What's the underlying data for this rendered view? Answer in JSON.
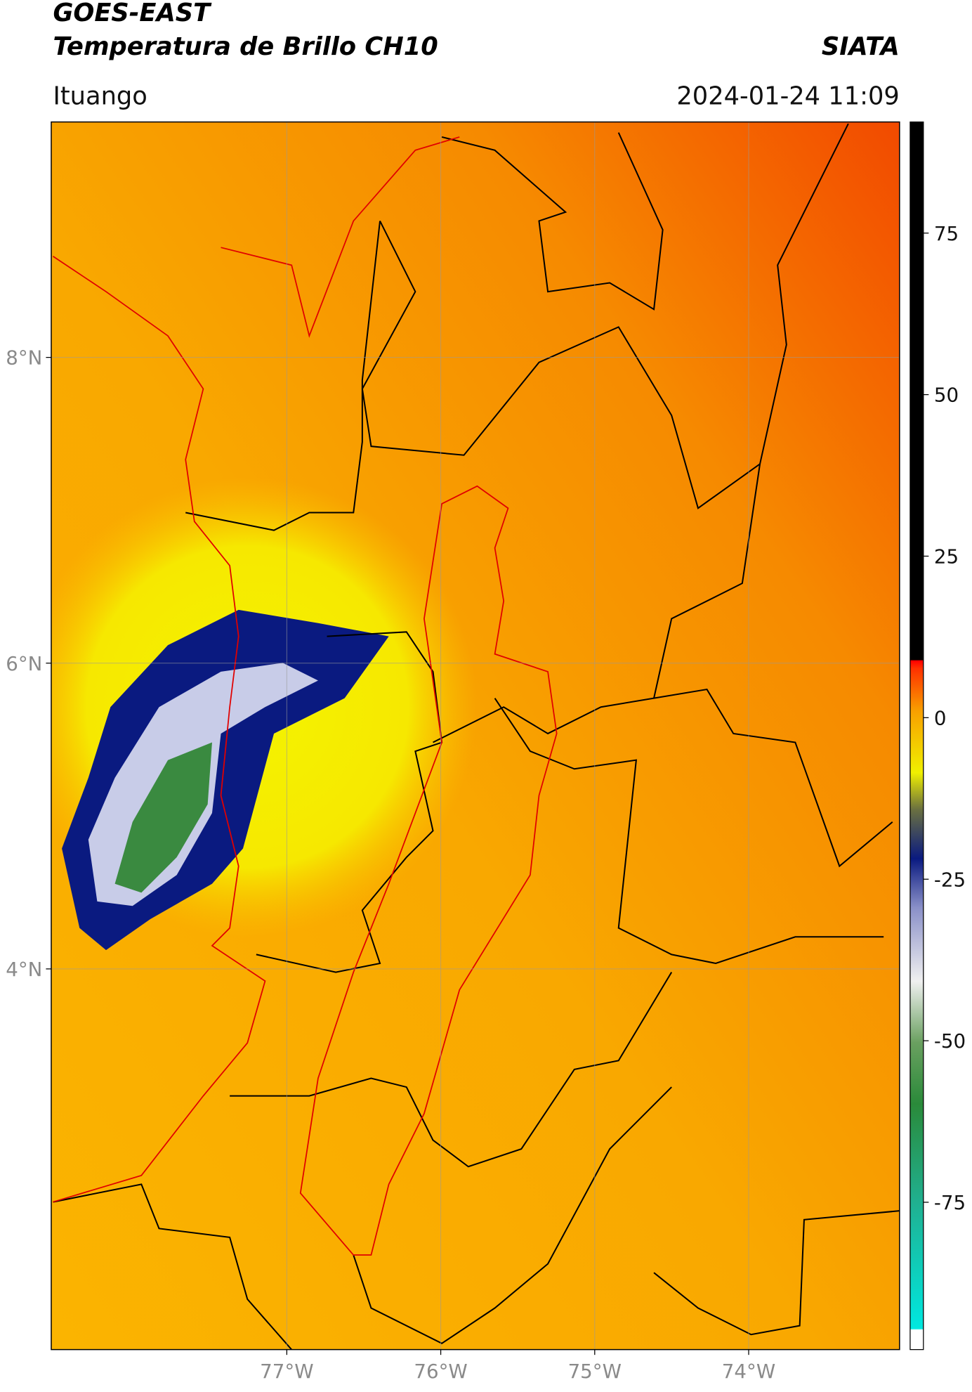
{
  "header": {
    "title": "GOES-EAST",
    "subtitle": "Temperatura de Brillo CH10",
    "brand": "SIATA",
    "location": "Ituango",
    "datetime": "2024-01-24 11:09"
  },
  "map": {
    "xlim": [
      -78.53,
      -73.02
    ],
    "ylim": [
      1.51,
      9.54
    ],
    "xticks": [
      {
        "value": -77,
        "label": "77°W"
      },
      {
        "value": -76,
        "label": "76°W"
      },
      {
        "value": -75,
        "label": "75°W"
      },
      {
        "value": -74,
        "label": "74°W"
      }
    ],
    "yticks": [
      {
        "value": 8,
        "label": "8°N"
      },
      {
        "value": 6,
        "label": "6°N"
      },
      {
        "value": 4,
        "label": "4°N"
      }
    ],
    "grid": true
  },
  "colorbar": {
    "lim": [
      -97.8,
      92.2
    ],
    "ticks": [
      75,
      50,
      25,
      0,
      -25,
      -50,
      -75
    ]
  }
}
